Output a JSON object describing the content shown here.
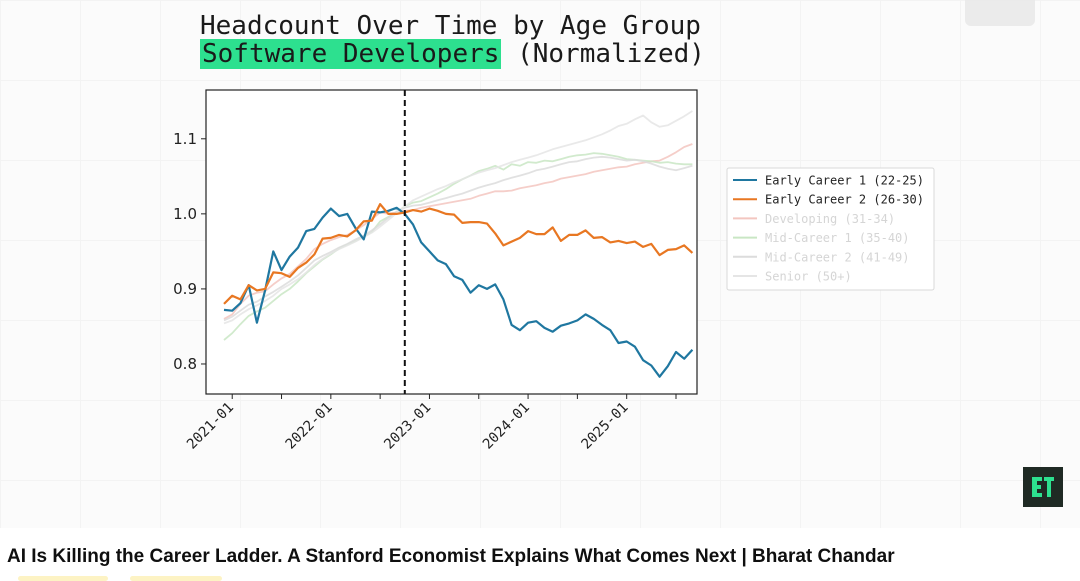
{
  "video": {
    "title_line1": "Headcount Over Time by Age Group",
    "title_highlight": "Software Developers",
    "title_suffix": " (Normalized)",
    "logo_icon": "channel-logo-icon",
    "highlight_color": "#2de08f"
  },
  "page": {
    "video_title": "AI Is Killing the Career Ladder. A Stanford Economist Explains What Comes Next | Bharat Chandar"
  },
  "chart_data": {
    "type": "line",
    "title": "Headcount Over Time by Age Group Software Developers (Normalized)",
    "x_start": "2020-12",
    "x_end": "2025-07",
    "x_ticks": [
      "2021-01",
      "2022-01",
      "2023-01",
      "2024-01",
      "2025-01"
    ],
    "x_minor_ticks": [
      "2021-07",
      "2022-07",
      "2023-07",
      "2024-07",
      "2025-07"
    ],
    "y_ticks": [
      0.8,
      0.9,
      1.0,
      1.1
    ],
    "ylim": [
      0.76,
      1.165
    ],
    "vline": "2022-10",
    "legend_position": "right",
    "grid": false,
    "series": [
      {
        "name": "Early Career 1 (22-25)",
        "color": "#1f77a0",
        "faded": false,
        "values": [
          0.872,
          0.871,
          0.881,
          0.905,
          0.855,
          0.898,
          0.95,
          0.925,
          0.943,
          0.955,
          0.977,
          0.98,
          0.995,
          1.007,
          0.997,
          1.0,
          0.981,
          0.966,
          1.003,
          1.002,
          1.004,
          1.008,
          1.0,
          0.986,
          0.962,
          0.95,
          0.938,
          0.933,
          0.917,
          0.912,
          0.895,
          0.905,
          0.9,
          0.906,
          0.886,
          0.852,
          0.845,
          0.855,
          0.857,
          0.848,
          0.843,
          0.851,
          0.854,
          0.858,
          0.866,
          0.86,
          0.852,
          0.845,
          0.828,
          0.83,
          0.823,
          0.805,
          0.798,
          0.783,
          0.797,
          0.816,
          0.807,
          0.819
        ]
      },
      {
        "name": "Early Career 2 (26-30)",
        "color": "#e87722",
        "faded": false,
        "values": [
          0.88,
          0.891,
          0.886,
          0.905,
          0.898,
          0.9,
          0.922,
          0.921,
          0.916,
          0.928,
          0.935,
          0.946,
          0.967,
          0.968,
          0.972,
          0.97,
          0.978,
          0.99,
          0.991,
          1.013,
          1.0,
          1.0,
          1.002,
          1.005,
          1.003,
          1.007,
          1.004,
          1.0,
          0.999,
          0.988,
          0.989,
          0.989,
          0.987,
          0.974,
          0.958,
          0.963,
          0.968,
          0.977,
          0.973,
          0.973,
          0.982,
          0.964,
          0.972,
          0.972,
          0.978,
          0.968,
          0.969,
          0.962,
          0.964,
          0.961,
          0.963,
          0.956,
          0.96,
          0.945,
          0.952,
          0.953,
          0.958,
          0.948
        ]
      },
      {
        "name": "Developing (31-34)",
        "color": "#f3c6c0",
        "faded": true,
        "values": [
          0.86,
          0.866,
          0.88,
          0.891,
          0.895,
          0.897,
          0.906,
          0.914,
          0.92,
          0.93,
          0.94,
          0.953,
          0.96,
          0.965,
          0.969,
          0.972,
          0.978,
          0.985,
          0.993,
          1.002,
          1.0,
          1.002,
          1.004,
          1.005,
          1.008,
          1.01,
          1.012,
          1.014,
          1.016,
          1.018,
          1.02,
          1.024,
          1.027,
          1.03,
          1.03,
          1.031,
          1.034,
          1.036,
          1.038,
          1.041,
          1.043,
          1.047,
          1.049,
          1.051,
          1.053,
          1.056,
          1.058,
          1.06,
          1.062,
          1.063,
          1.066,
          1.068,
          1.07,
          1.071,
          1.076,
          1.082,
          1.089,
          1.093
        ]
      },
      {
        "name": "Mid-Career 1 (35-40)",
        "color": "#c9e6c4",
        "faded": true,
        "values": [
          0.832,
          0.841,
          0.853,
          0.864,
          0.87,
          0.875,
          0.884,
          0.893,
          0.9,
          0.91,
          0.921,
          0.93,
          0.939,
          0.946,
          0.954,
          0.959,
          0.964,
          0.97,
          0.976,
          0.99,
          0.996,
          1.002,
          1.01,
          1.015,
          1.017,
          1.022,
          1.027,
          1.033,
          1.04,
          1.046,
          1.051,
          1.057,
          1.06,
          1.064,
          1.059,
          1.066,
          1.064,
          1.069,
          1.068,
          1.071,
          1.07,
          1.073,
          1.076,
          1.078,
          1.079,
          1.081,
          1.08,
          1.078,
          1.076,
          1.073,
          1.072,
          1.071,
          1.07,
          1.068,
          1.069,
          1.067,
          1.066,
          1.066
        ]
      },
      {
        "name": "Mid-Career 2 (41-49)",
        "color": "#dcdcdc",
        "faded": true,
        "values": [
          0.858,
          0.863,
          0.871,
          0.879,
          0.883,
          0.89,
          0.896,
          0.903,
          0.91,
          0.918,
          0.928,
          0.938,
          0.944,
          0.949,
          0.955,
          0.96,
          0.966,
          0.971,
          0.978,
          0.986,
          0.995,
          1.003,
          1.008,
          1.011,
          1.012,
          1.015,
          1.018,
          1.021,
          1.024,
          1.027,
          1.031,
          1.035,
          1.038,
          1.041,
          1.045,
          1.048,
          1.051,
          1.054,
          1.058,
          1.06,
          1.063,
          1.066,
          1.069,
          1.07,
          1.073,
          1.075,
          1.076,
          1.075,
          1.073,
          1.071,
          1.072,
          1.07,
          1.067,
          1.063,
          1.06,
          1.058,
          1.061,
          1.064
        ]
      },
      {
        "name": "Senior (50+)",
        "color": "#e5e5e5",
        "faded": true,
        "values": [
          0.854,
          0.858,
          0.866,
          0.873,
          0.878,
          0.884,
          0.891,
          0.9,
          0.906,
          0.913,
          0.922,
          0.932,
          0.94,
          0.947,
          0.953,
          0.958,
          0.963,
          0.969,
          0.975,
          0.983,
          0.992,
          1.001,
          1.01,
          1.018,
          1.023,
          1.028,
          1.033,
          1.037,
          1.042,
          1.046,
          1.051,
          1.055,
          1.058,
          1.061,
          1.065,
          1.069,
          1.072,
          1.075,
          1.078,
          1.082,
          1.086,
          1.089,
          1.092,
          1.095,
          1.098,
          1.102,
          1.106,
          1.111,
          1.117,
          1.12,
          1.126,
          1.131,
          1.122,
          1.116,
          1.118,
          1.124,
          1.13,
          1.137
        ]
      }
    ]
  }
}
